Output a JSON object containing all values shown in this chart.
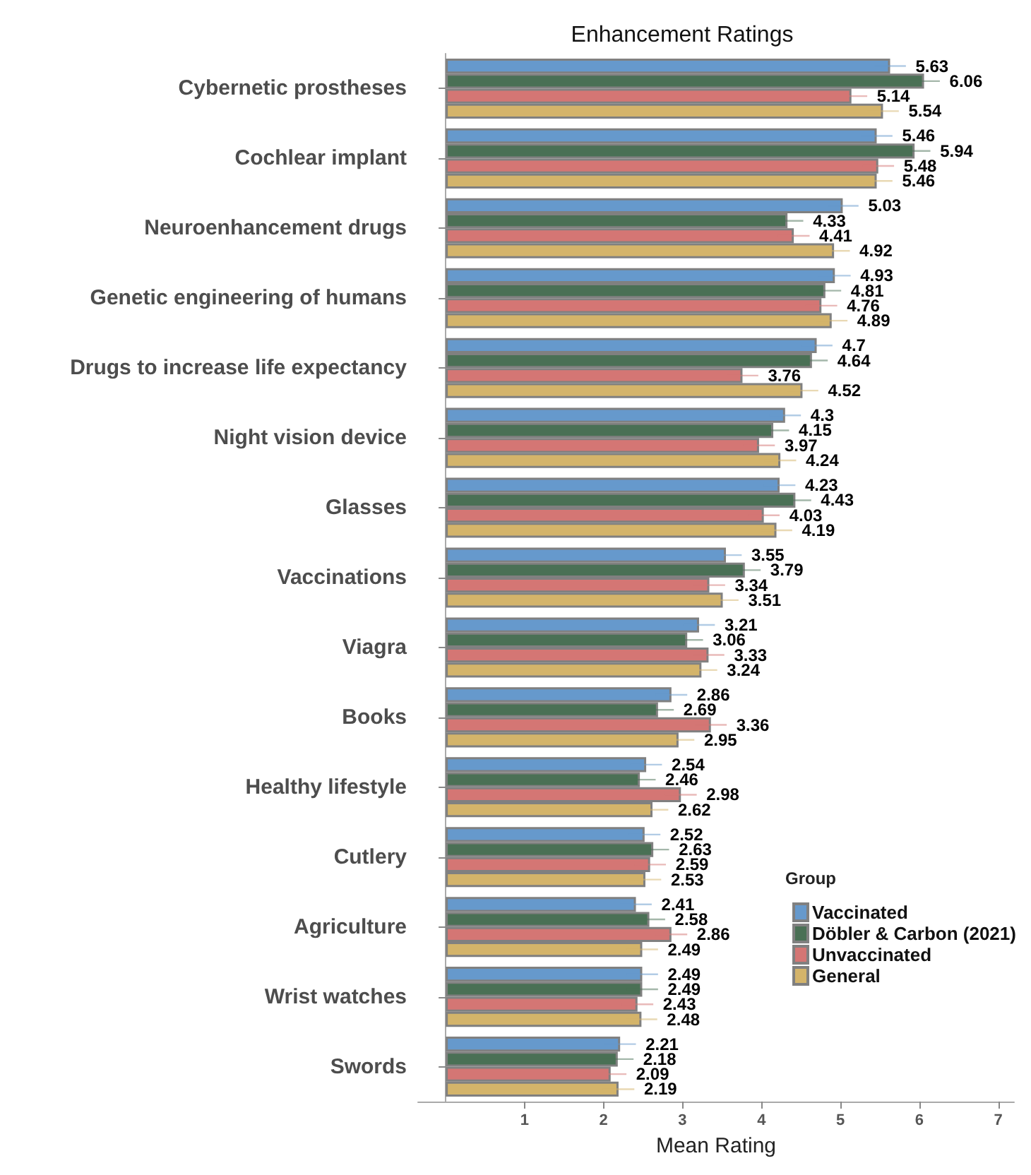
{
  "chart_data": {
    "type": "bar",
    "orientation": "horizontal",
    "title": "Enhancement Ratings",
    "xlabel": "Mean Rating",
    "legend_title": "Group",
    "legend": "bottom right",
    "categories": [
      "Cybernetic prostheses",
      "Cochlear implant",
      "Neuroenhancement drugs",
      "Genetic engineering of humans",
      "Drugs to increase life expectancy",
      "Night vision device",
      "Glasses",
      "Vaccinations",
      "Viagra",
      "Books",
      "Healthy lifestyle",
      "Cutlery",
      "Agriculture",
      "Wrist watches",
      "Swords"
    ],
    "series": [
      {
        "name": "Vaccinated",
        "color": "#6699cc",
        "values": [
          5.63,
          5.46,
          5.03,
          4.93,
          4.7,
          4.3,
          4.23,
          3.55,
          3.21,
          2.86,
          2.54,
          2.52,
          2.41,
          2.49,
          2.21
        ],
        "errors": [
          0.2,
          0.2,
          0.2,
          0.2,
          0.2,
          0.2,
          0.2,
          0.2,
          0.2,
          0.2,
          0.2,
          0.2,
          0.2,
          0.2,
          0.2
        ]
      },
      {
        "name": "Döbler & Carbon (2021)",
        "color": "#4a7055",
        "values": [
          6.06,
          5.94,
          4.33,
          4.81,
          4.64,
          4.15,
          4.43,
          3.79,
          3.06,
          2.69,
          2.46,
          2.63,
          2.58,
          2.49,
          2.18
        ],
        "errors": [
          0.2,
          0.2,
          0.2,
          0.2,
          0.2,
          0.2,
          0.2,
          0.2,
          0.2,
          0.2,
          0.2,
          0.2,
          0.2,
          0.2,
          0.2
        ]
      },
      {
        "name": "Unvaccinated",
        "color": "#d47674",
        "values": [
          5.14,
          5.48,
          4.41,
          4.76,
          3.76,
          3.97,
          4.03,
          3.34,
          3.33,
          3.36,
          2.98,
          2.59,
          2.86,
          2.43,
          2.09
        ],
        "errors": [
          0.2,
          0.2,
          0.2,
          0.2,
          0.2,
          0.2,
          0.2,
          0.2,
          0.2,
          0.2,
          0.2,
          0.2,
          0.2,
          0.2,
          0.2
        ]
      },
      {
        "name": "General",
        "color": "#d4b46a",
        "values": [
          5.54,
          5.46,
          4.92,
          4.89,
          4.52,
          4.24,
          4.19,
          3.51,
          3.24,
          2.95,
          2.62,
          2.53,
          2.49,
          2.48,
          2.19
        ],
        "errors": [
          0.2,
          0.2,
          0.2,
          0.2,
          0.2,
          0.2,
          0.2,
          0.2,
          0.2,
          0.2,
          0.2,
          0.2,
          0.2,
          0.2,
          0.2
        ]
      }
    ],
    "xlim": [
      -0.35,
      7.2
    ],
    "xticks": [
      1,
      2,
      3,
      4,
      5,
      6,
      7
    ],
    "grid": false,
    "data_labels": true
  }
}
